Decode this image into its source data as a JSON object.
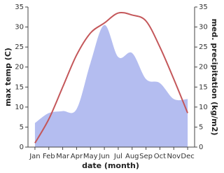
{
  "chart_data": {
    "type": "line-area",
    "x_label": "date (month)",
    "y_label": "max temp (C)",
    "y2_label": "med. precipitation (kg/m2)",
    "categories": [
      "Jan",
      "Feb",
      "Mar",
      "Apr",
      "May",
      "Jun",
      "Jul",
      "Aug",
      "Sep",
      "Oct",
      "Nov",
      "Dec"
    ],
    "series": [
      {
        "name": "max temp",
        "color": "#c4575a",
        "kind": "line",
        "values": [
          1,
          7,
          15,
          23,
          28.5,
          31,
          33.5,
          33,
          31.5,
          25,
          17,
          8.5
        ]
      },
      {
        "name": "med. precipitation",
        "color": "#b4bdf0",
        "kind": "area",
        "axis": "y2",
        "values": [
          6,
          8.5,
          9,
          9.5,
          21,
          30.5,
          22.5,
          23.5,
          17,
          16,
          12,
          12
        ]
      }
    ],
    "ylim": [
      0,
      35
    ],
    "yticks": [
      0,
      5,
      10,
      15,
      20,
      25,
      30,
      35
    ],
    "y2lim": [
      0,
      35
    ],
    "y2ticks": [
      0,
      5,
      10,
      15,
      20,
      25,
      30,
      35
    ]
  }
}
